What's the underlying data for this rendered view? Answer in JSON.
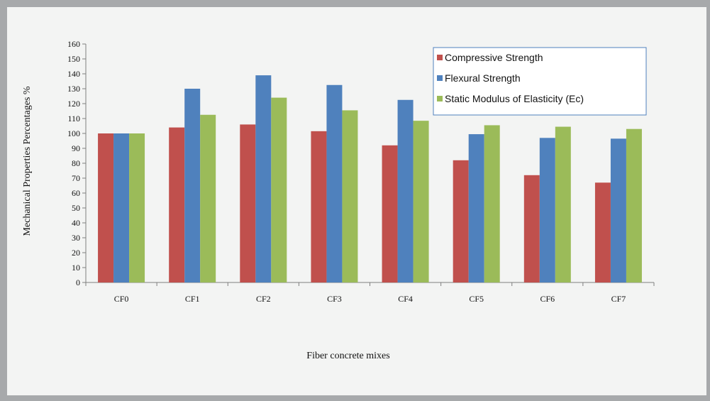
{
  "chart_data": {
    "type": "bar",
    "title": "",
    "xlabel": "Fiber concrete mixes",
    "ylabel": "Mechanical Properties Percentages %",
    "categories": [
      "CF0",
      "CF1",
      "CF2",
      "CF3",
      "CF4",
      "CF5",
      "CF6",
      "CF7"
    ],
    "ylim": [
      0,
      160
    ],
    "ytick_step": 10,
    "grid": false,
    "legend_position": "top-right",
    "series": [
      {
        "name": "Compressive Strength",
        "color": "#c0504d",
        "values": [
          100,
          104,
          106,
          101.5,
          92,
          82,
          72,
          67
        ]
      },
      {
        "name": "Flexural Strength",
        "color": "#4f81bd",
        "values": [
          100,
          130,
          139,
          132.5,
          122.5,
          99.5,
          97,
          96.5
        ]
      },
      {
        "name": "Static Modulus of Elasticity (Ec)",
        "color": "#9bbb59",
        "values": [
          100,
          112.5,
          124,
          115.5,
          108.5,
          105.5,
          104.5,
          103
        ]
      }
    ]
  }
}
